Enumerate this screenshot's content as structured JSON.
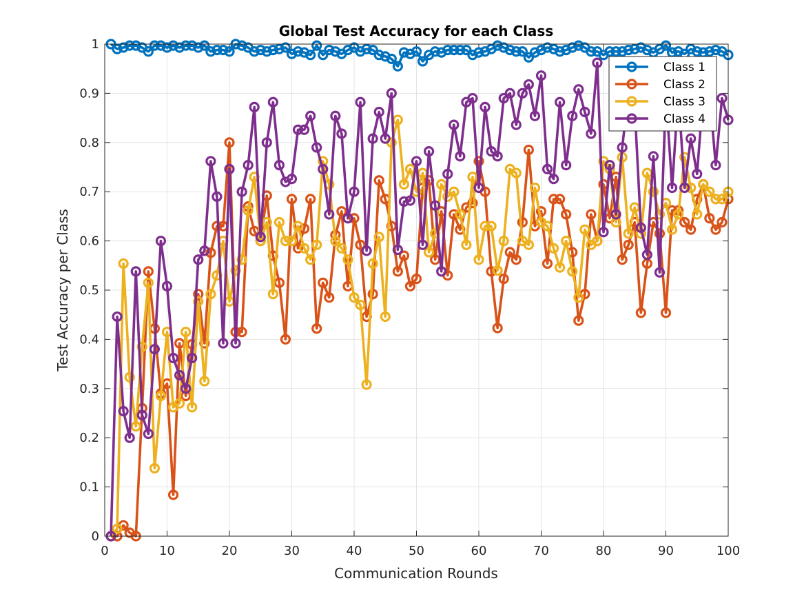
{
  "chart_data": {
    "type": "line",
    "title": "Global Test Accuracy for each Class",
    "xlabel": "Communication Rounds",
    "ylabel": "Test Accuracy per Class",
    "xlim": [
      0,
      100
    ],
    "ylim": [
      0,
      1
    ],
    "xticks": [
      "0",
      "10",
      "20",
      "30",
      "40",
      "50",
      "60",
      "70",
      "80",
      "90",
      "100"
    ],
    "yticks": [
      "0",
      "0.1",
      "0.2",
      "0.3",
      "0.4",
      "0.5",
      "0.6",
      "0.7",
      "0.8",
      "0.9",
      "1"
    ],
    "grid": true,
    "legend_position": "top-right",
    "x": [
      1,
      2,
      3,
      4,
      5,
      6,
      7,
      8,
      9,
      10,
      11,
      12,
      13,
      14,
      15,
      16,
      17,
      18,
      19,
      20,
      21,
      22,
      23,
      24,
      25,
      26,
      27,
      28,
      29,
      30,
      31,
      32,
      33,
      34,
      35,
      36,
      37,
      38,
      39,
      40,
      41,
      42,
      43,
      44,
      45,
      46,
      47,
      48,
      49,
      50,
      51,
      52,
      53,
      54,
      55,
      56,
      57,
      58,
      59,
      60,
      61,
      62,
      63,
      64,
      65,
      66,
      67,
      68,
      69,
      70,
      71,
      72,
      73,
      74,
      75,
      76,
      77,
      78,
      79,
      80,
      81,
      82,
      83,
      84,
      85,
      86,
      87,
      88,
      89,
      90,
      91,
      92,
      93,
      94,
      95,
      96,
      97,
      98,
      99,
      100
    ],
    "series": [
      {
        "name": "Class 1",
        "color": "#0072BD",
        "values": [
          1.0,
          0.99,
          0.993,
          0.997,
          0.997,
          0.993,
          0.985,
          0.997,
          0.997,
          0.993,
          0.997,
          0.993,
          0.997,
          0.997,
          0.993,
          0.997,
          0.985,
          0.988,
          0.988,
          0.985,
          1.0,
          0.997,
          0.993,
          0.985,
          0.988,
          0.985,
          0.988,
          0.99,
          0.993,
          0.98,
          0.985,
          0.983,
          0.978,
          0.997,
          0.978,
          0.988,
          0.985,
          0.98,
          0.988,
          0.993,
          0.985,
          0.99,
          0.988,
          0.978,
          0.975,
          0.97,
          0.955,
          0.983,
          0.98,
          0.985,
          0.965,
          0.978,
          0.985,
          0.983,
          0.988,
          0.988,
          0.988,
          0.988,
          0.978,
          0.983,
          0.985,
          0.99,
          0.997,
          0.993,
          0.988,
          0.985,
          0.985,
          0.973,
          0.983,
          0.988,
          0.993,
          0.99,
          0.985,
          0.988,
          0.993,
          0.997,
          0.993,
          0.985,
          0.985,
          0.978,
          0.985,
          0.985,
          0.985,
          0.988,
          0.99,
          0.993,
          0.988,
          0.983,
          0.99,
          0.997,
          0.983,
          0.985,
          0.98,
          0.99,
          0.985,
          0.983,
          0.985,
          0.988,
          0.985,
          0.978
        ]
      },
      {
        "name": "Class 2",
        "color": "#D95319",
        "values": [
          0.0,
          0.0,
          0.022,
          0.007,
          0.0,
          0.26,
          0.538,
          0.422,
          0.29,
          0.31,
          0.084,
          0.392,
          0.285,
          0.39,
          0.492,
          0.392,
          0.576,
          0.63,
          0.63,
          0.8,
          0.415,
          0.415,
          0.67,
          0.62,
          0.6,
          0.692,
          0.57,
          0.515,
          0.4,
          0.685,
          0.585,
          0.625,
          0.685,
          0.422,
          0.515,
          0.485,
          0.612,
          0.66,
          0.508,
          0.646,
          0.592,
          0.446,
          0.492,
          0.723,
          0.685,
          0.63,
          0.538,
          0.57,
          0.508,
          0.523,
          0.708,
          0.723,
          0.562,
          0.66,
          0.53,
          0.654,
          0.623,
          0.668,
          0.677,
          0.762,
          0.7,
          0.538,
          0.423,
          0.523,
          0.577,
          0.562,
          0.638,
          0.785,
          0.63,
          0.66,
          0.554,
          0.685,
          0.685,
          0.654,
          0.577,
          0.438,
          0.492,
          0.654,
          0.6,
          0.715,
          0.646,
          0.73,
          0.562,
          0.592,
          0.638,
          0.454,
          0.554,
          0.638,
          0.615,
          0.454,
          0.662,
          0.662,
          0.638,
          0.623,
          0.685,
          0.715,
          0.646,
          0.623,
          0.638,
          0.685
        ]
      },
      {
        "name": "Class 3",
        "color": "#EDB120",
        "values": [
          0.0,
          0.015,
          0.554,
          0.323,
          0.223,
          0.385,
          0.515,
          0.138,
          0.285,
          0.415,
          0.262,
          0.27,
          0.415,
          0.262,
          0.477,
          0.315,
          0.492,
          0.53,
          0.6,
          0.477,
          0.54,
          0.562,
          0.662,
          0.73,
          0.6,
          0.638,
          0.492,
          0.638,
          0.6,
          0.6,
          0.63,
          0.585,
          0.562,
          0.592,
          0.762,
          0.715,
          0.6,
          0.585,
          0.562,
          0.485,
          0.47,
          0.308,
          0.554,
          0.608,
          0.446,
          0.8,
          0.846,
          0.715,
          0.746,
          0.7,
          0.738,
          0.577,
          0.615,
          0.715,
          0.69,
          0.7,
          0.654,
          0.592,
          0.73,
          0.562,
          0.63,
          0.63,
          0.54,
          0.6,
          0.746,
          0.738,
          0.6,
          0.592,
          0.708,
          0.638,
          0.63,
          0.585,
          0.546,
          0.6,
          0.538,
          0.485,
          0.623,
          0.592,
          0.6,
          0.762,
          0.746,
          0.638,
          0.77,
          0.615,
          0.668,
          0.615,
          0.738,
          0.7,
          0.654,
          0.677,
          0.623,
          0.654,
          0.77,
          0.708,
          0.654,
          0.715,
          0.7,
          0.685,
          0.685,
          0.7
        ]
      },
      {
        "name": "Class 4",
        "color": "#7E2F8E",
        "values": [
          0.0,
          0.446,
          0.254,
          0.2,
          0.538,
          0.246,
          0.208,
          0.38,
          0.6,
          0.508,
          0.362,
          0.327,
          0.3,
          0.362,
          0.562,
          0.58,
          0.762,
          0.69,
          0.392,
          0.746,
          0.392,
          0.7,
          0.754,
          0.872,
          0.608,
          0.8,
          0.882,
          0.754,
          0.72,
          0.726,
          0.826,
          0.826,
          0.854,
          0.79,
          0.746,
          0.654,
          0.854,
          0.818,
          0.646,
          0.7,
          0.882,
          0.58,
          0.808,
          0.862,
          0.808,
          0.9,
          0.582,
          0.68,
          0.682,
          0.762,
          0.592,
          0.782,
          0.672,
          0.538,
          0.736,
          0.836,
          0.772,
          0.882,
          0.89,
          0.708,
          0.872,
          0.782,
          0.772,
          0.89,
          0.9,
          0.836,
          0.9,
          0.918,
          0.854,
          0.936,
          0.746,
          0.726,
          0.882,
          0.754,
          0.854,
          0.908,
          0.862,
          0.818,
          0.962,
          0.618,
          0.754,
          0.654,
          0.79,
          0.9,
          0.872,
          0.627,
          0.572,
          0.772,
          0.536,
          0.9,
          0.708,
          0.9,
          0.708,
          0.808,
          0.736,
          0.9,
          0.9,
          0.754,
          0.89,
          0.846
        ]
      }
    ]
  }
}
